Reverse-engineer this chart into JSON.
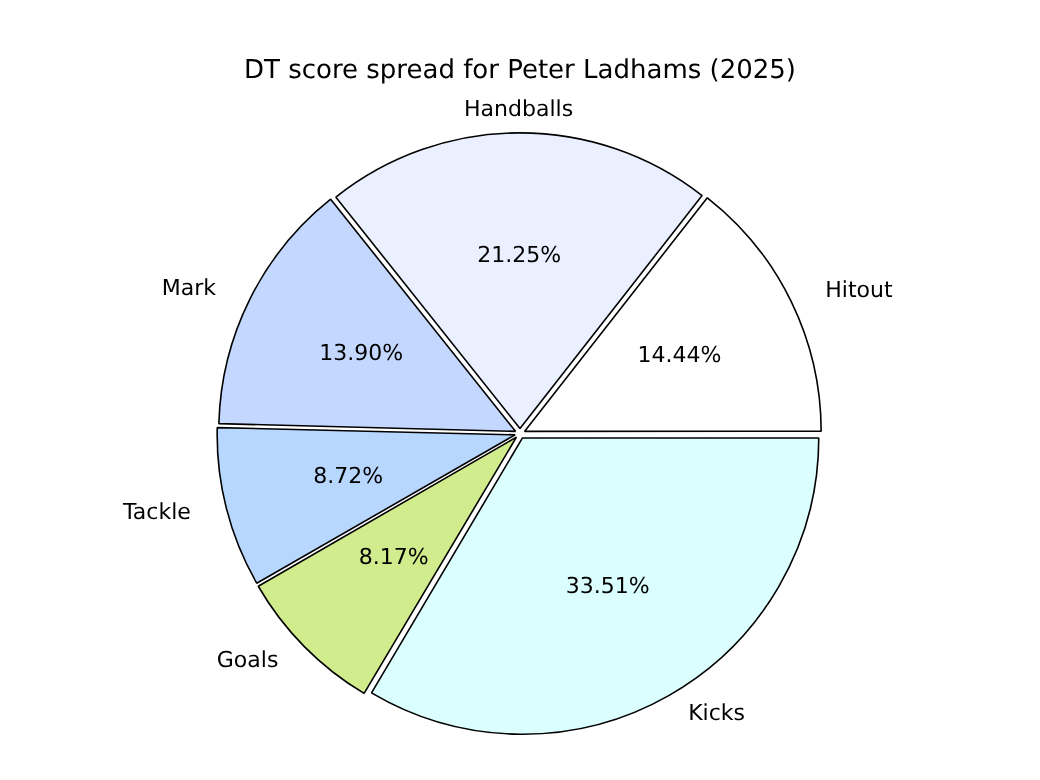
{
  "chart_data": {
    "type": "pie",
    "title": "DT score spread for Peter Ladhams (2025)",
    "categories": [
      "Kicks",
      "Goals",
      "Tackle",
      "Mark",
      "Handballs",
      "Hitout"
    ],
    "values": [
      33.51,
      8.17,
      8.72,
      13.9,
      21.25,
      14.44
    ],
    "value_labels": [
      "33.51%",
      "8.17%",
      "8.72%",
      "13.90%",
      "21.25%",
      "14.44%"
    ],
    "colors": [
      "#dbffff",
      "#d0ec8c",
      "#b7d7ff",
      "#c4d8ff",
      "#eaf0ff",
      "#ffffff"
    ],
    "legend": false
  }
}
